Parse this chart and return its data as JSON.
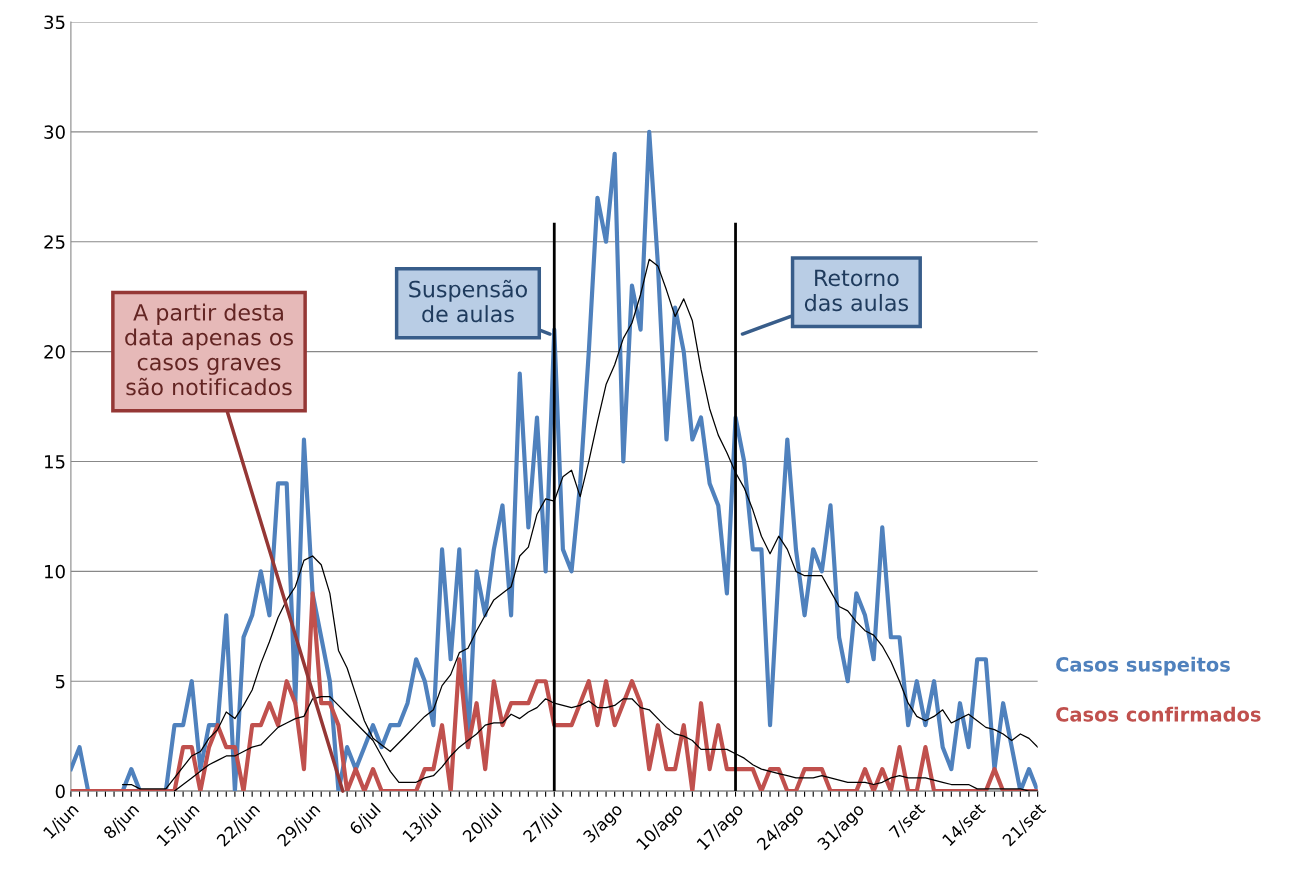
{
  "chart_data": {
    "type": "line",
    "categories": [
      "1/jun",
      null,
      null,
      null,
      null,
      null,
      null,
      "8/jun",
      null,
      null,
      null,
      null,
      null,
      null,
      "15/jun",
      null,
      null,
      null,
      null,
      null,
      null,
      "22/jun",
      null,
      null,
      null,
      null,
      null,
      null,
      "29/jun",
      null,
      null,
      null,
      null,
      null,
      null,
      "6/jul",
      null,
      null,
      null,
      null,
      null,
      null,
      "13/jul",
      null,
      null,
      null,
      null,
      null,
      null,
      "20/jul",
      null,
      null,
      null,
      null,
      null,
      null,
      "27/jul",
      null,
      null,
      null,
      null,
      null,
      null,
      "3/ago",
      null,
      null,
      null,
      null,
      null,
      null,
      "10/ago",
      null,
      null,
      null,
      null,
      null,
      null,
      "17/ago",
      null,
      null,
      null,
      null,
      null,
      null,
      "24/ago",
      null,
      null,
      null,
      null,
      null,
      null,
      "31/ago",
      null,
      null,
      null,
      null,
      null,
      null,
      "7/set",
      null,
      null,
      null,
      null,
      null,
      null,
      "14/set",
      null,
      null,
      null,
      null,
      null,
      null,
      "21/set"
    ],
    "series": [
      {
        "name": "Casos suspeitos",
        "color": "#4f81bd",
        "values": [
          1,
          2,
          0,
          0,
          0,
          0,
          0,
          1,
          0,
          0,
          0,
          0,
          3,
          3,
          5,
          1,
          3,
          3,
          8,
          0,
          7,
          8,
          10,
          8,
          14,
          14,
          4,
          16,
          9,
          7,
          5,
          0,
          2,
          1,
          2,
          3,
          2,
          3,
          3,
          4,
          6,
          5,
          3,
          11,
          6,
          11,
          2,
          10,
          8,
          11,
          13,
          8,
          19,
          12,
          17,
          10,
          21,
          11,
          10,
          14,
          20,
          27,
          25,
          29,
          15,
          23,
          21,
          30,
          24,
          16,
          22,
          20,
          16,
          17,
          14,
          13,
          9,
          17,
          15,
          11,
          11,
          3,
          10,
          16,
          11,
          8,
          11,
          10,
          13,
          7,
          5,
          9,
          8,
          6,
          12,
          7,
          7,
          3,
          5,
          3,
          5,
          2,
          1,
          4,
          2,
          6,
          6,
          1,
          4,
          2,
          0,
          1,
          0
        ]
      },
      {
        "name": "Casos confirmados",
        "color": "#c0504d",
        "values": [
          0,
          0,
          0,
          0,
          0,
          0,
          0,
          0,
          0,
          0,
          0,
          0,
          0,
          2,
          2,
          0,
          2,
          3,
          2,
          2,
          0,
          3,
          3,
          4,
          3,
          5,
          4,
          1,
          9,
          4,
          4,
          3,
          0,
          1,
          0,
          1,
          0,
          0,
          0,
          0,
          0,
          1,
          1,
          3,
          0,
          6,
          2,
          4,
          1,
          5,
          3,
          4,
          4,
          4,
          5,
          5,
          3,
          3,
          3,
          4,
          5,
          3,
          5,
          3,
          4,
          5,
          4,
          1,
          3,
          1,
          1,
          3,
          0,
          4,
          1,
          3,
          1,
          1,
          1,
          1,
          0,
          1,
          1,
          0,
          0,
          1,
          1,
          1,
          0,
          0,
          0,
          0,
          1,
          0,
          1,
          0,
          2,
          0,
          0,
          2,
          0,
          0,
          0,
          0,
          0,
          0,
          0,
          1,
          0,
          0,
          0,
          0,
          0
        ]
      },
      {
        "color": "#000000",
        "values": [
          null,
          null,
          null,
          null,
          null,
          null,
          0.3,
          0.3,
          0.1,
          0.1,
          0.1,
          0.1,
          0.6,
          1.1,
          1.6,
          1.8,
          2.4,
          2.8,
          3.6,
          3.3,
          3.9,
          4.6,
          5.8,
          6.8,
          7.9,
          8.7,
          9.3,
          10.5,
          10.7,
          10.3,
          9.0,
          6.4,
          5.6,
          4.4,
          3.2,
          2.4,
          2.1,
          1.8,
          2.2,
          2.6,
          3.0,
          3.4,
          3.7,
          4.8,
          5.3,
          6.3,
          6.5,
          7.3,
          8.0,
          8.7,
          9.0,
          9.3,
          10.7,
          11.1,
          12.6,
          13.3,
          13.2,
          14.3,
          14.6,
          13.4,
          15.0,
          16.8,
          18.5,
          19.4,
          20.6,
          21.3,
          22.6,
          24.2,
          23.9,
          22.8,
          21.6,
          22.4,
          21.4,
          19.2,
          17.4,
          16.2,
          15.4,
          14.5,
          13.8,
          12.8,
          11.6,
          10.8,
          11.6,
          11.0,
          10.0,
          9.8,
          9.8,
          9.8,
          9.1,
          8.4,
          8.2,
          7.7,
          7.3,
          7.1,
          6.6,
          5.9,
          5.0,
          4.0,
          3.4,
          3.2,
          3.4,
          3.7,
          3.1,
          3.3,
          3.5,
          3.2,
          2.9,
          2.8,
          2.6,
          2.3,
          2.6,
          2.4,
          2.0
        ]
      },
      {
        "color": "#000000",
        "values": [
          null,
          null,
          null,
          null,
          null,
          null,
          null,
          null,
          null,
          null,
          null,
          null,
          0,
          0.3,
          0.6,
          0.9,
          1.2,
          1.4,
          1.6,
          1.6,
          1.8,
          2.0,
          2.1,
          2.5,
          2.9,
          3.1,
          3.3,
          3.4,
          4.2,
          4.3,
          4.3,
          3.9,
          3.5,
          3.1,
          2.7,
          2.3,
          1.6,
          0.9,
          0.4,
          0.4,
          0.4,
          0.6,
          0.7,
          1.1,
          1.6,
          2.0,
          2.3,
          2.6,
          3.0,
          3.1,
          3.1,
          3.5,
          3.3,
          3.6,
          3.8,
          4.2,
          4.0,
          3.9,
          3.8,
          3.9,
          4.1,
          3.8,
          3.8,
          3.9,
          4.2,
          4.2,
          3.8,
          3.7,
          3.3,
          2.9,
          2.6,
          2.5,
          2.3,
          1.9,
          1.9,
          1.9,
          1.9,
          1.7,
          1.5,
          1.2,
          1.0,
          0.9,
          0.8,
          0.7,
          0.6,
          0.6,
          0.6,
          0.7,
          0.6,
          0.5,
          0.4,
          0.4,
          0.4,
          0.3,
          0.4,
          0.6,
          0.7,
          0.6,
          0.6,
          0.6,
          0.5,
          0.4,
          0.3,
          0.3,
          0.3,
          0.1,
          0.1,
          0.1,
          0.1,
          0.1,
          0.1,
          0,
          0
        ]
      }
    ],
    "ylim": [
      0,
      35
    ],
    "yticks": [
      0,
      5,
      10,
      15,
      20,
      25,
      30,
      35
    ],
    "grid": "y",
    "legend": "right",
    "ref_lines": [
      {
        "axis": "x",
        "value": "27/jul",
        "color": "#000000"
      },
      {
        "axis": "x",
        "value": "17/ago",
        "color": "#000000"
      }
    ],
    "annotations": [
      "A partir desta\ndata apenas os\ncasos graves\nsão notificados",
      "Suspensão\nde aulas",
      "Retorno\ndas aulas"
    ]
  }
}
